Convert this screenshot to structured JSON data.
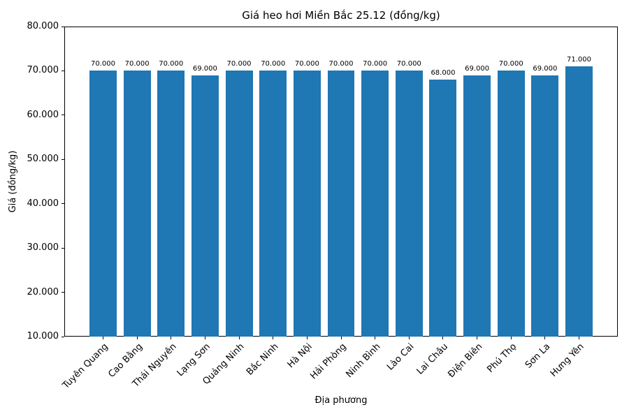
{
  "chart_data": {
    "type": "bar",
    "title": "Giá heo hơi Miền Bắc 25.12 (đồng/kg)",
    "xlabel": "Địa phương",
    "ylabel": "Giá (đồng/kg)",
    "categories": [
      "Tuyên Quang",
      "Cao Bằng",
      "Thái Nguyên",
      "Lạng Sơn",
      "Quảng Ninh",
      "Bắc Ninh",
      "Hà Nội",
      "Hải Phòng",
      "Ninh Bình",
      "Lào Cai",
      "Lai Châu",
      "Điện Biên",
      "Phú Thọ",
      "Sơn La",
      "Hưng Yên"
    ],
    "values": [
      70000,
      70000,
      70000,
      69000,
      70000,
      70000,
      70000,
      70000,
      70000,
      70000,
      68000,
      69000,
      70000,
      69000,
      71000
    ],
    "value_labels": [
      "70.000",
      "70.000",
      "70.000",
      "69.000",
      "70.000",
      "70.000",
      "70.000",
      "70.000",
      "70.000",
      "70.000",
      "68.000",
      "69.000",
      "70.000",
      "69.000",
      "71.000"
    ],
    "ylim": [
      10000,
      80000
    ],
    "yticks": [
      10000,
      20000,
      30000,
      40000,
      50000,
      60000,
      70000,
      80000
    ],
    "ytick_labels": [
      "10.000",
      "20.000",
      "30.000",
      "40.000",
      "50.000",
      "60.000",
      "70.000",
      "80.000"
    ],
    "bar_color": "#1f77b4",
    "grid": false,
    "legend": null,
    "x_tick_rotation_deg": 45
  }
}
